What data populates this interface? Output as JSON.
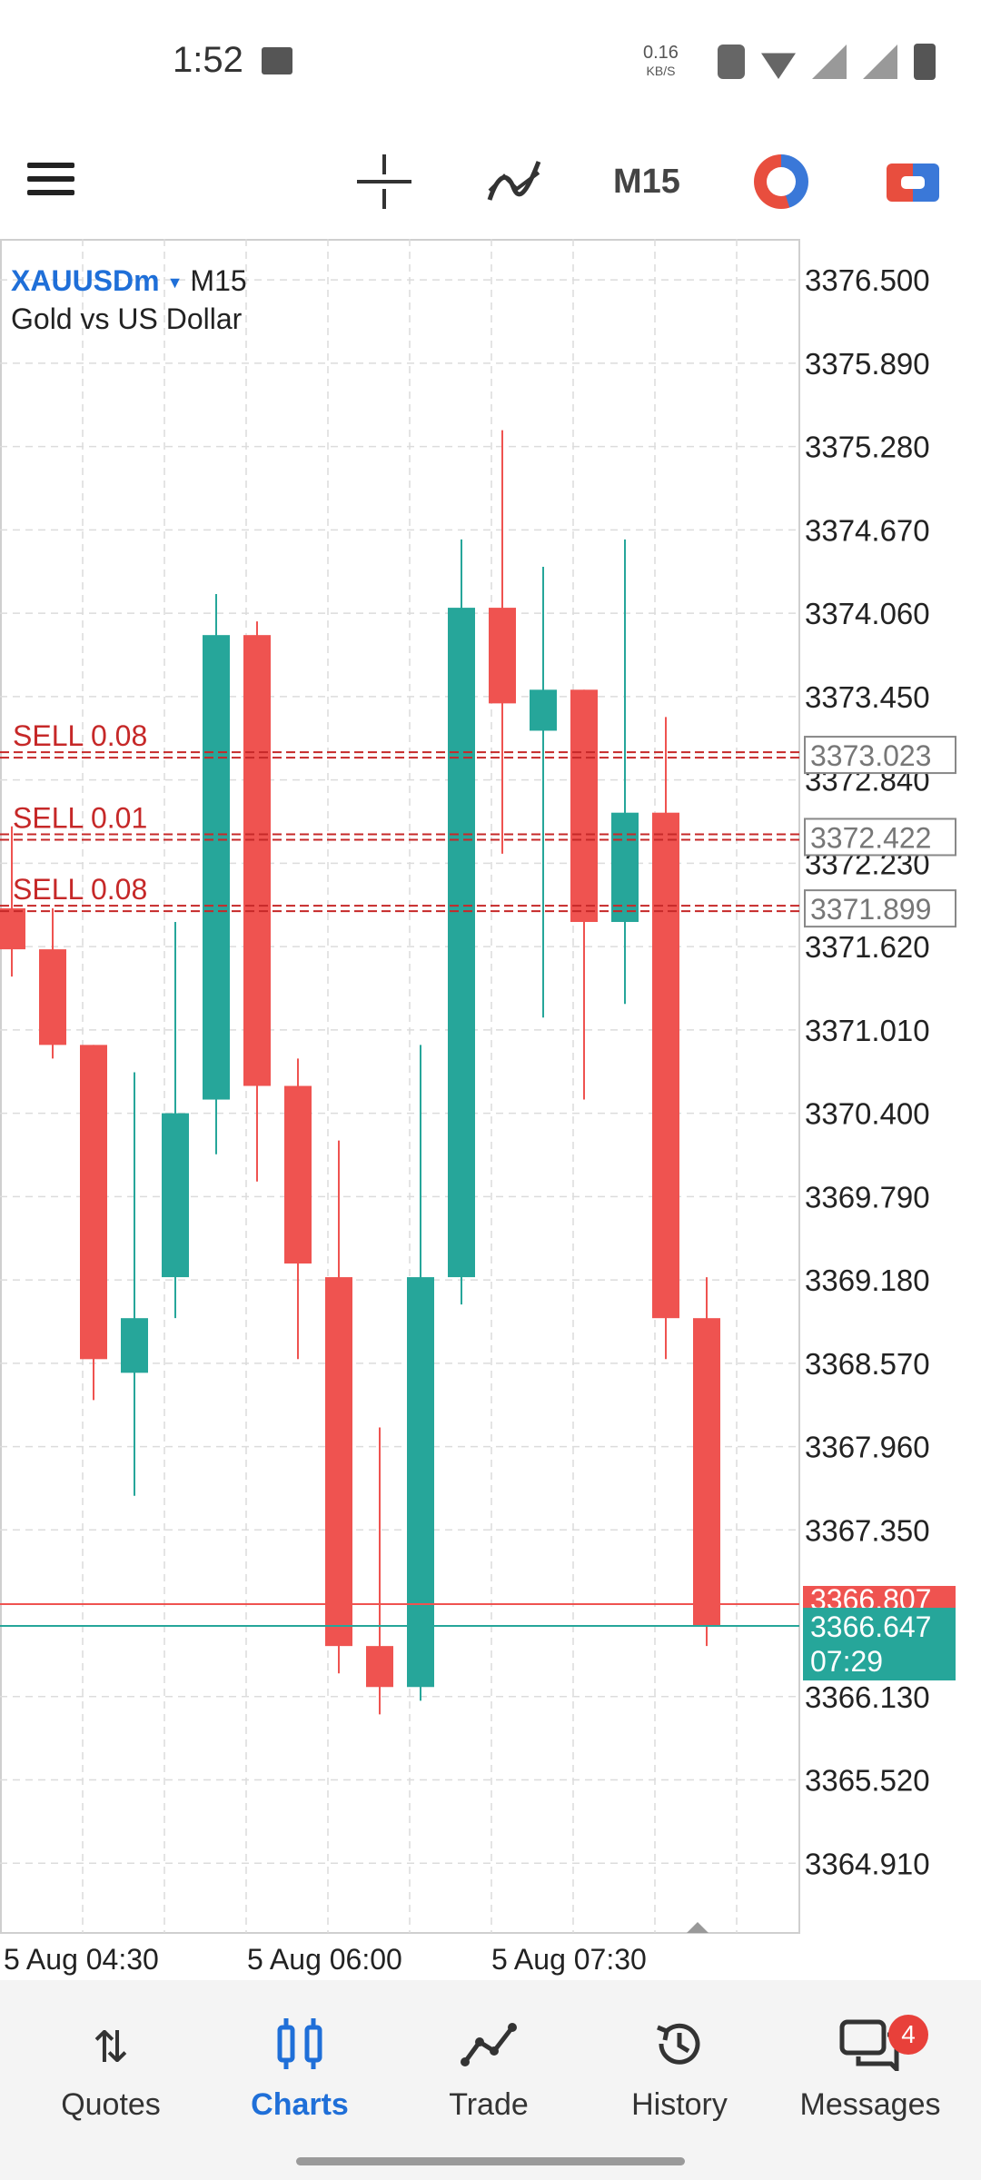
{
  "status_bar": {
    "time": "1:52",
    "net_speed": "0.16",
    "net_unit": "KB/S",
    "icons": [
      "image-icon",
      "vibrate-icon",
      "wifi-icon",
      "signal-off-icon",
      "signal-off-icon",
      "battery-icon"
    ]
  },
  "toolbar": {
    "timeframe_label": "M15",
    "icons": [
      "menu-icon",
      "crosshair-icon",
      "indicators-icon",
      "one-click-trading-icon",
      "trade-icon"
    ]
  },
  "symbol": {
    "name": "XAUUSDm",
    "timeframe": "M15",
    "description": "Gold vs US Dollar"
  },
  "chart_data": {
    "type": "candlestick",
    "price_axis_labels": [
      "3376.500",
      "3375.890",
      "3375.280",
      "3374.670",
      "3374.060",
      "3373.450",
      "3372.840",
      "3372.230",
      "3371.620",
      "3371.010",
      "3370.400",
      "3369.790",
      "3369.180",
      "3368.570",
      "3367.960",
      "3367.350",
      "3366.130",
      "3365.520",
      "3364.910"
    ],
    "time_axis_labels": [
      "5 Aug 04:30",
      "5 Aug 06:00",
      "5 Aug 07:30"
    ],
    "y_range": [
      3364.4,
      3376.8
    ],
    "colors": {
      "bull": "#26a69a",
      "bear": "#ef5350",
      "order": "#c62828",
      "ask": "#ef5350",
      "bid": "#26a69a"
    },
    "candles": [
      {
        "o": 3371.9,
        "h": 3372.5,
        "l": 3371.4,
        "c": 3371.6
      },
      {
        "o": 3371.6,
        "h": 3371.9,
        "l": 3370.8,
        "c": 3370.9
      },
      {
        "o": 3370.9,
        "h": 3370.9,
        "l": 3368.3,
        "c": 3368.6
      },
      {
        "o": 3368.5,
        "h": 3370.7,
        "l": 3367.6,
        "c": 3368.9
      },
      {
        "o": 3369.2,
        "h": 3371.8,
        "l": 3368.9,
        "c": 3370.4
      },
      {
        "o": 3370.5,
        "h": 3374.2,
        "l": 3370.1,
        "c": 3373.9
      },
      {
        "o": 3373.9,
        "h": 3374.0,
        "l": 3369.9,
        "c": 3370.6
      },
      {
        "o": 3370.6,
        "h": 3370.8,
        "l": 3368.6,
        "c": 3369.3
      },
      {
        "o": 3369.2,
        "h": 3370.2,
        "l": 3366.3,
        "c": 3366.5
      },
      {
        "o": 3366.5,
        "h": 3368.1,
        "l": 3366.0,
        "c": 3366.2
      },
      {
        "o": 3366.2,
        "h": 3370.9,
        "l": 3366.1,
        "c": 3369.2
      },
      {
        "o": 3369.2,
        "h": 3374.6,
        "l": 3369.0,
        "c": 3374.1
      },
      {
        "o": 3374.1,
        "h": 3375.4,
        "l": 3372.3,
        "c": 3373.4
      },
      {
        "o": 3373.2,
        "h": 3374.4,
        "l": 3371.1,
        "c": 3373.5
      },
      {
        "o": 3373.5,
        "h": 3373.5,
        "l": 3370.5,
        "c": 3371.8
      },
      {
        "o": 3371.8,
        "h": 3374.6,
        "l": 3371.2,
        "c": 3372.6
      },
      {
        "o": 3372.6,
        "h": 3373.3,
        "l": 3368.6,
        "c": 3368.9
      },
      {
        "o": 3368.9,
        "h": 3369.2,
        "l": 3366.5,
        "c": 3366.647
      }
    ],
    "order_lines": [
      {
        "label": "SELL 0.08",
        "price": 3373.023,
        "price_label": "3373.023"
      },
      {
        "label": "SELL 0.01",
        "price": 3372.422,
        "price_label": "3372.422"
      },
      {
        "label": "SELL 0.08",
        "price": 3371.899,
        "price_label": "3371.899"
      }
    ],
    "ask": {
      "price": 3366.807,
      "label": "3366.807"
    },
    "bid": {
      "price": 3366.647,
      "label": "3366.647",
      "countdown": "07:29"
    }
  },
  "bottom_nav": {
    "items": [
      {
        "label": "Quotes",
        "icon": "quotes-icon"
      },
      {
        "label": "Charts",
        "icon": "charts-icon",
        "active": true
      },
      {
        "label": "Trade",
        "icon": "trade-icon"
      },
      {
        "label": "History",
        "icon": "history-icon"
      },
      {
        "label": "Messages",
        "icon": "messages-icon",
        "badge": "4"
      }
    ]
  }
}
